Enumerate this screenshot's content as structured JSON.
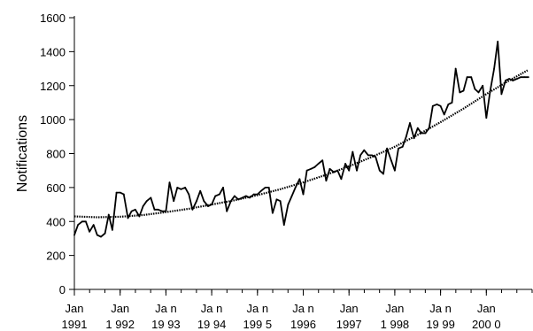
{
  "chart_data": {
    "type": "line",
    "title": "",
    "xlabel": "",
    "ylabel": "Notifications",
    "ylim": [
      0,
      1600
    ],
    "yticks": [
      0,
      200,
      400,
      600,
      800,
      1000,
      1200,
      1400,
      1600
    ],
    "xlim_months": [
      1991.0,
      2001.0
    ],
    "grid": false,
    "legend": "none",
    "x_tick_labels": [
      {
        "month": "Jan",
        "year": "1991"
      },
      {
        "month": "Jan",
        "year": "1 992"
      },
      {
        "month": "Ja n",
        "year": "19 93"
      },
      {
        "month": "Ja n",
        "year": "19 94"
      },
      {
        "month": "Ja n",
        "year": "199 5"
      },
      {
        "month": "Ja n",
        "year": "1996"
      },
      {
        "month": "Jan",
        "year": "1997"
      },
      {
        "month": "Jan",
        "year": "1 998"
      },
      {
        "month": "Ja n",
        "year": "19 99"
      },
      {
        "month": "Jan",
        "year": "200 0"
      }
    ],
    "x_tick_years": [
      1991,
      1992,
      1993,
      1994,
      1995,
      1996,
      1997,
      1998,
      1999,
      2000
    ],
    "series": [
      {
        "style": "solid-observed",
        "color": "#000000",
        "x": [
          1991.0,
          1991.08,
          1991.17,
          1991.25,
          1991.33,
          1991.42,
          1991.5,
          1991.58,
          1991.67,
          1991.75,
          1991.83,
          1991.92,
          1992.0,
          1992.08,
          1992.17,
          1992.25,
          1992.33,
          1992.42,
          1992.5,
          1992.58,
          1992.67,
          1992.75,
          1992.83,
          1992.92,
          1993.0,
          1993.08,
          1993.17,
          1993.25,
          1993.33,
          1993.42,
          1993.5,
          1993.58,
          1993.67,
          1993.75,
          1993.83,
          1993.92,
          1994.0,
          1994.08,
          1994.17,
          1994.25,
          1994.33,
          1994.42,
          1994.5,
          1994.58,
          1994.67,
          1994.75,
          1994.83,
          1994.92,
          1995.0,
          1995.08,
          1995.17,
          1995.25,
          1995.33,
          1995.42,
          1995.5,
          1995.58,
          1995.67,
          1995.75,
          1995.83,
          1995.92,
          1996.0,
          1996.08,
          1996.17,
          1996.25,
          1996.33,
          1996.42,
          1996.5,
          1996.58,
          1996.67,
          1996.75,
          1996.83,
          1996.92,
          1997.0,
          1997.08,
          1997.17,
          1997.25,
          1997.33,
          1997.42,
          1997.5,
          1997.58,
          1997.67,
          1997.75,
          1997.83,
          1997.92,
          1998.0,
          1998.08,
          1998.17,
          1998.25,
          1998.33,
          1998.42,
          1998.5,
          1998.58,
          1998.67,
          1998.75,
          1998.83,
          1998.92,
          1999.0,
          1999.08,
          1999.17,
          1999.25,
          1999.33,
          1999.42,
          1999.5,
          1999.58,
          1999.67,
          1999.75,
          1999.83,
          1999.92,
          2000.0,
          2000.08,
          2000.17,
          2000.25,
          2000.33,
          2000.42,
          2000.5,
          2000.58,
          2000.67,
          2000.75,
          2000.83,
          2000.92
        ],
        "y": [
          320,
          380,
          400,
          400,
          340,
          380,
          320,
          310,
          330,
          440,
          350,
          570,
          570,
          560,
          420,
          460,
          470,
          430,
          490,
          520,
          540,
          470,
          470,
          460,
          460,
          630,
          520,
          600,
          590,
          600,
          560,
          470,
          520,
          580,
          520,
          490,
          500,
          550,
          560,
          600,
          460,
          520,
          550,
          530,
          540,
          550,
          540,
          560,
          560,
          580,
          600,
          600,
          450,
          530,
          520,
          380,
          500,
          550,
          600,
          650,
          560,
          700,
          710,
          720,
          740,
          760,
          640,
          710,
          690,
          700,
          650,
          740,
          700,
          810,
          700,
          790,
          820,
          790,
          790,
          780,
          700,
          680,
          830,
          760,
          700,
          830,
          840,
          900,
          980,
          890,
          950,
          920,
          920,
          950,
          1080,
          1090,
          1080,
          1030,
          1090,
          1100,
          1300,
          1160,
          1170,
          1250,
          1250,
          1180,
          1160,
          1200,
          1010,
          1160,
          1300,
          1460,
          1150,
          1230,
          1240,
          1230,
          1240,
          1250,
          1250,
          1250
        ]
      },
      {
        "style": "dotted-trend",
        "color": "#000000",
        "x": [
          1991.0,
          1991.5,
          1992.0,
          1992.5,
          1993.0,
          1993.5,
          1994.0,
          1994.5,
          1995.0,
          1995.5,
          1996.0,
          1996.5,
          1997.0,
          1997.5,
          1998.0,
          1998.5,
          1999.0,
          1999.5,
          2000.0,
          2000.5,
          2000.9
        ],
        "y": [
          430,
          425,
          428,
          438,
          455,
          475,
          500,
          525,
          555,
          590,
          630,
          675,
          725,
          780,
          840,
          910,
          985,
          1065,
          1150,
          1230,
          1290
        ]
      }
    ]
  }
}
